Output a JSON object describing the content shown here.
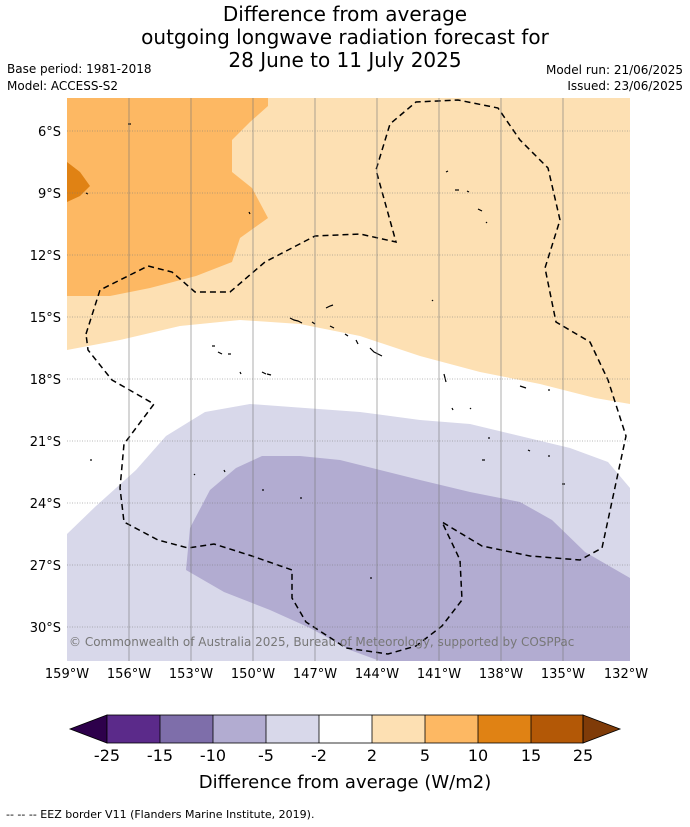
{
  "title_lines": [
    "Difference from average",
    "outgoing longwave radiation forecast for",
    "28 June to 11 July 2025"
  ],
  "base_period": "Base period: 1981-2018",
  "model": "Model: ACCESS-S2",
  "model_run": "Model run: 21/06/2025",
  "issued": "Issued: 23/06/2025",
  "copyright": "© Commonwealth of Australia 2025, Bureau of Meteorology, supported by COSPPac",
  "footer": "-- -- -- EEZ border V11 (Flanders Marine Institute, 2019).",
  "map": {
    "lat_labels": [
      "6°S",
      "9°S",
      "12°S",
      "15°S",
      "18°S",
      "21°S",
      "24°S",
      "27°S",
      "30°S"
    ],
    "lon_labels": [
      "159°W",
      "156°W",
      "153°W",
      "150°W",
      "147°W",
      "144°W",
      "141°W",
      "138°W",
      "135°W",
      "132°W"
    ]
  },
  "colorbar": {
    "title": "Difference from average (W/m2)",
    "tick_labels": [
      "-25",
      "-15",
      "-10",
      "-5",
      "-2",
      "2",
      "5",
      "10",
      "15",
      "25"
    ],
    "colors": [
      "#5b2a8a",
      "#7e6eaa",
      "#b2acd1",
      "#d8d8ea",
      "#ffffff",
      "#fde0b3",
      "#fdb863",
      "#e08214",
      "#b35806"
    ],
    "under_color": "#2d004b",
    "over_color": "#7f3b08"
  },
  "palette": {
    "light_orange": "#fde0b3",
    "orange": "#fdb863",
    "dark_orange": "#e08214",
    "light_purple": "#d8d8ea",
    "purple": "#b2acd1"
  }
}
